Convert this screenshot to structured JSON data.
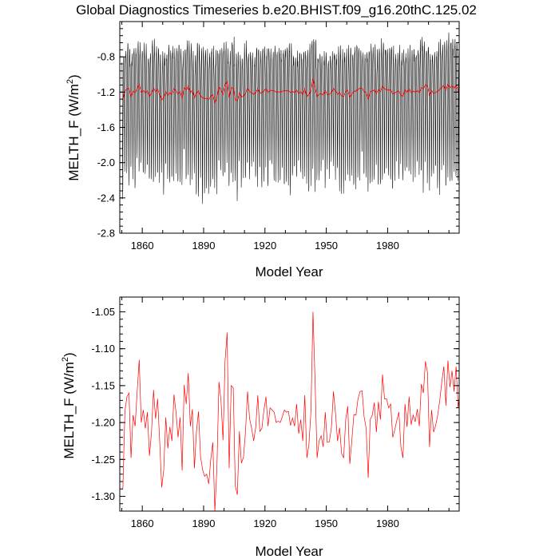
{
  "chart_data": [
    {
      "type": "line",
      "title": "Global Diagnostics Timeseries b.e20.BHIST.f09_g16.20thC.125.02",
      "xlabel": "Model Year",
      "ylabel_main": "MELTH_F (W/m",
      "ylabel_sup": "2",
      "ylabel_close": ")",
      "xlim": [
        1849,
        2015
      ],
      "ylim": [
        -2.8,
        -0.4
      ],
      "xticks": [
        1860,
        1890,
        1920,
        1950,
        1980
      ],
      "yticks": [
        -2.8,
        -2.4,
        -2.0,
        -1.6,
        -1.2,
        -0.8
      ],
      "ytick_labels": [
        "-2.8",
        "-2.4",
        "-2.0",
        "-1.6",
        "-1.2",
        "-0.8"
      ],
      "series": [
        {
          "name": "monthly",
          "color": "#000000",
          "description": "monthly values, annual cycle between about -2.5 and -0.6"
        },
        {
          "name": "annual mean",
          "color": "#ff0000",
          "x_start": 1850,
          "values": "see panel 2"
        }
      ]
    },
    {
      "type": "line",
      "xlabel": "Model Year",
      "ylabel_main": "MELTH_F (W/m",
      "ylabel_sup": "2",
      "ylabel_close": ")",
      "xlim": [
        1849,
        2015
      ],
      "ylim": [
        -1.32,
        -1.03
      ],
      "xticks": [
        1860,
        1890,
        1920,
        1950,
        1980
      ],
      "yticks": [
        -1.3,
        -1.25,
        -1.2,
        -1.15,
        -1.1,
        -1.05
      ],
      "ytick_labels": [
        "-1.30",
        "-1.25",
        "-1.20",
        "-1.15",
        "-1.10",
        "-1.05"
      ],
      "series": [
        {
          "name": "annual mean",
          "color": "#ff0000",
          "x_start": 1850,
          "values": [
            -1.29,
            -1.185,
            -1.165,
            -1.16,
            -1.248,
            -1.19,
            -1.205,
            -1.158,
            -1.115,
            -1.2,
            -1.183,
            -1.208,
            -1.186,
            -1.245,
            -1.214,
            -1.156,
            -1.195,
            -1.168,
            -1.224,
            -1.288,
            -1.264,
            -1.193,
            -1.235,
            -1.206,
            -1.225,
            -1.162,
            -1.186,
            -1.22,
            -1.193,
            -1.265,
            -1.149,
            -1.175,
            -1.133,
            -1.205,
            -1.182,
            -1.262,
            -1.212,
            -1.185,
            -1.246,
            -1.264,
            -1.273,
            -1.27,
            -1.283,
            -1.25,
            -1.227,
            -1.32,
            -1.262,
            -1.145,
            -1.17,
            -1.224,
            -1.116,
            -1.078,
            -1.262,
            -1.15,
            -1.153,
            -1.286,
            -1.298,
            -1.212,
            -1.255,
            -1.247,
            -1.212,
            -1.158,
            -1.195,
            -1.208,
            -1.225,
            -1.206,
            -1.163,
            -1.212,
            -1.208,
            -1.183,
            -1.165,
            -1.205,
            -1.18,
            -1.183,
            -1.186,
            -1.2,
            -1.198,
            -1.2,
            -1.192,
            -1.183,
            -1.186,
            -1.185,
            -1.204,
            -1.194,
            -1.205,
            -1.175,
            -1.215,
            -1.196,
            -1.225,
            -1.163,
            -1.248,
            -1.23,
            -1.185,
            -1.05,
            -1.143,
            -1.248,
            -1.225,
            -1.218,
            -1.233,
            -1.186,
            -1.227,
            -1.226,
            -1.207,
            -1.158,
            -1.187,
            -1.225,
            -1.207,
            -1.242,
            -1.248,
            -1.196,
            -1.178,
            -1.256,
            -1.224,
            -1.189,
            -1.19,
            -1.168,
            -1.158,
            -1.157,
            -1.192,
            -1.208,
            -1.275,
            -1.196,
            -1.19,
            -1.173,
            -1.213,
            -1.172,
            -1.196,
            -1.135,
            -1.168,
            -1.168,
            -1.18,
            -1.175,
            -1.22,
            -1.21,
            -1.197,
            -1.186,
            -1.233,
            -1.248,
            -1.175,
            -1.206,
            -1.165,
            -1.203,
            -1.19,
            -1.199,
            -1.182,
            -1.205,
            -1.148,
            -1.16,
            -1.117,
            -1.132,
            -1.233,
            -1.183,
            -1.213,
            -1.204,
            -1.19,
            -1.17,
            -1.145,
            -1.124,
            -1.177,
            -1.116,
            -1.152,
            -1.13,
            -1.158,
            -1.124,
            -1.18,
            -1.153,
            -1.095,
            -1.143,
            -1.165,
            -1.112,
            -1.117,
            -1.153,
            -1.148,
            -1.158,
            -1.13,
            -1.115,
            -1.175,
            -1.158,
            -1.17,
            -1.16,
            -1.165,
            -1.118,
            -1.155,
            -1.18,
            -1.162,
            -1.15,
            -1.13,
            -1.115,
            -1.13,
            -1.118,
            -1.102,
            -1.134,
            -1.12,
            -1.126,
            -1.12,
            -1.133,
            -1.12,
            -1.168,
            -1.16,
            -1.148,
            -1.125,
            -1.135,
            -1.118,
            -1.12,
            -1.128,
            -1.12,
            -1.106,
            -1.124,
            -1.096,
            -1.118,
            -1.09,
            -1.08,
            -1.06,
            -1.056,
            -1.06,
            -1.076,
            -1.125,
            -1.118
          ]
        }
      ]
    }
  ]
}
